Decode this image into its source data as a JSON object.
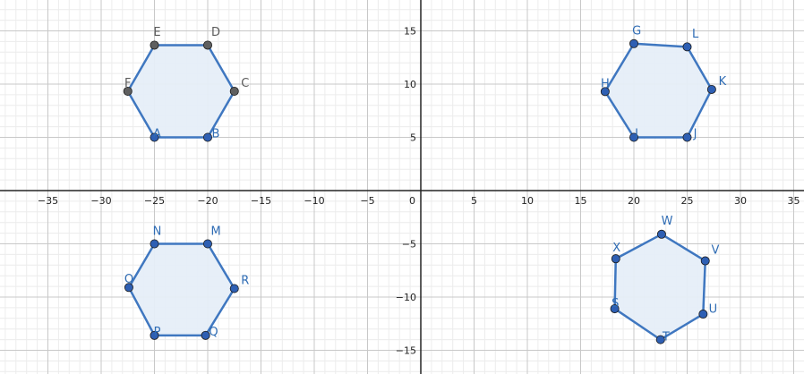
{
  "chart_data": {
    "type": "diagram",
    "axes": {
      "x_ticks": [
        -35,
        -30,
        -25,
        -20,
        -15,
        -10,
        -5,
        5,
        10,
        15,
        20,
        25,
        30,
        35
      ],
      "y_ticks": [
        15,
        10,
        5,
        -5,
        -10,
        -15
      ],
      "origin_label": "0",
      "x_range": [
        -39.4,
        35.4
      ],
      "y_range": [
        -17.2,
        17.7
      ]
    },
    "colors": {
      "polygon_stroke": "#3f77c0",
      "polygon_fill": "#e6eef8",
      "point_blue": "#2e5fb3",
      "point_gray": "#5f5f5f",
      "label_blue": "#2f6cb4",
      "label_gray": "#5a5a5a",
      "grid_major": "#c8c8c8",
      "grid_minor": "#ececec",
      "axis": "#252525"
    },
    "polygons": [
      {
        "name": "hexagon-abcdef",
        "points": [
          {
            "label": "A",
            "x": -25,
            "y": 5,
            "style": "blue"
          },
          {
            "label": "B",
            "x": -20,
            "y": 5,
            "style": "blue"
          },
          {
            "label": "C",
            "x": -17.5,
            "y": 9.33,
            "style": "gray"
          },
          {
            "label": "D",
            "x": -20,
            "y": 13.66,
            "style": "gray"
          },
          {
            "label": "E",
            "x": -25,
            "y": 13.66,
            "style": "gray"
          },
          {
            "label": "F",
            "x": -27.5,
            "y": 9.33,
            "style": "gray"
          }
        ]
      },
      {
        "name": "hexagon-ijklgh",
        "points": [
          {
            "label": "I",
            "x": 20,
            "y": 5,
            "style": "blue"
          },
          {
            "label": "J",
            "x": 25,
            "y": 5,
            "style": "blue"
          },
          {
            "label": "K",
            "x": 27.3,
            "y": 9.5,
            "style": "blue"
          },
          {
            "label": "L",
            "x": 25,
            "y": 13.5,
            "style": "blue"
          },
          {
            "label": "G",
            "x": 20,
            "y": 13.8,
            "style": "blue"
          },
          {
            "label": "H",
            "x": 17.3,
            "y": 9.3,
            "style": "blue"
          }
        ]
      },
      {
        "name": "hexagon-mnopqr",
        "points": [
          {
            "label": "M",
            "x": -20,
            "y": -5,
            "style": "blue"
          },
          {
            "label": "N",
            "x": -25,
            "y": -5,
            "style": "blue"
          },
          {
            "label": "O",
            "x": -27.4,
            "y": -9.1,
            "style": "blue"
          },
          {
            "label": "P",
            "x": -25,
            "y": -13.6,
            "style": "blue"
          },
          {
            "label": "Q",
            "x": -20.2,
            "y": -13.6,
            "style": "blue"
          },
          {
            "label": "R",
            "x": -17.5,
            "y": -9.2,
            "style": "blue"
          }
        ]
      },
      {
        "name": "hexagon-stuvwx",
        "points": [
          {
            "label": "S",
            "x": 18.2,
            "y": -11.1,
            "style": "blue"
          },
          {
            "label": "T",
            "x": 22.5,
            "y": -14,
            "style": "blue"
          },
          {
            "label": "U",
            "x": 26.5,
            "y": -11.6,
            "style": "blue"
          },
          {
            "label": "V",
            "x": 26.7,
            "y": -6.6,
            "style": "blue"
          },
          {
            "label": "W",
            "x": 22.6,
            "y": -4.1,
            "style": "blue"
          },
          {
            "label": "X",
            "x": 18.3,
            "y": -6.4,
            "style": "blue"
          }
        ]
      }
    ]
  }
}
